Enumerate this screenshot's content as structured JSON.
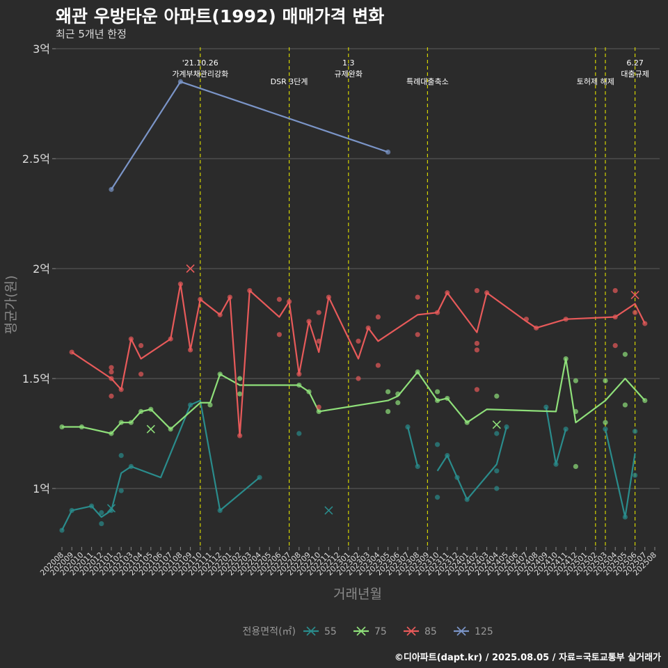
{
  "chart_data": {
    "type": "line",
    "title": "왜관 우방타운 아파트(1992) 매매가격 변화",
    "subtitle": "최근 5개년 한정",
    "xlabel": "거래년월",
    "ylabel": "평균가(원)",
    "credit": "©디아파트(dapt.kr) / 2025.08.05 / 자료=국토교통부 실거래가",
    "ylim": [
      0.8,
      3.0
    ],
    "y_ticks": [
      {
        "value": 1.0,
        "label": "1억"
      },
      {
        "value": 1.5,
        "label": "1.5억"
      },
      {
        "value": 2.0,
        "label": "2억"
      },
      {
        "value": 2.5,
        "label": "2.5억"
      },
      {
        "value": 3.0,
        "label": "3억"
      }
    ],
    "x_categories": [
      "202008",
      "202009",
      "202010",
      "202011",
      "202012",
      "202101",
      "202102",
      "202103",
      "202104",
      "202105",
      "202106",
      "202107",
      "202108",
      "202109",
      "202110",
      "202111",
      "202112",
      "202201",
      "202202",
      "202203",
      "202204",
      "202205",
      "202206",
      "202207",
      "202208",
      "202209",
      "202210",
      "202211",
      "202212",
      "202301",
      "202302",
      "202303",
      "202304",
      "202305",
      "202306",
      "202307",
      "202308",
      "202309",
      "202310",
      "202311",
      "202312",
      "202401",
      "202402",
      "202403",
      "202404",
      "202405",
      "202406",
      "202407",
      "202408",
      "202409",
      "202410",
      "202411",
      "202412",
      "202501",
      "202502",
      "202503",
      "202504",
      "202505",
      "202506",
      "202507",
      "202508"
    ],
    "legend": {
      "title": "전용면적(㎡)",
      "position": "bottom"
    },
    "events": [
      {
        "x": "202110",
        "lines": [
          "'21.10.26",
          "가계부채관리강화"
        ]
      },
      {
        "x": "202207",
        "lines": [
          "DSR 3단계"
        ]
      },
      {
        "x": "202301",
        "lines": [
          "1.3",
          "규제완화"
        ]
      },
      {
        "x": "202309",
        "lines": [
          "특례대출축소"
        ]
      },
      {
        "x": "202502",
        "lines": [
          "토허제 해제"
        ]
      },
      {
        "x": "202503",
        "lines": []
      },
      {
        "x": "202506",
        "lines": [
          "6.27",
          "대출규제"
        ]
      }
    ],
    "series": [
      {
        "name": "55",
        "color": "#2a8c8c",
        "line": [
          [
            "202008",
            0.81
          ],
          [
            "202009",
            0.9
          ],
          [
            "202011",
            0.92
          ],
          [
            "202012",
            0.87
          ],
          [
            "202101",
            0.9
          ],
          [
            "202102",
            1.07
          ],
          [
            "202103",
            1.1
          ],
          [
            "202106",
            1.05
          ],
          [
            "202109",
            1.38
          ],
          [
            "202110",
            1.4
          ],
          [
            "202112",
            0.9
          ],
          [
            "202204",
            1.05
          ]
        ],
        "line2": [
          [
            "202307",
            1.28
          ],
          [
            "202308",
            1.1
          ]
        ],
        "line3": [
          [
            "202310",
            1.08
          ],
          [
            "202311",
            1.15
          ],
          [
            "202312",
            1.05
          ],
          [
            "202401",
            0.95
          ],
          [
            "202404",
            1.11
          ],
          [
            "202405",
            1.28
          ]
        ],
        "line4": [
          [
            "202409",
            1.37
          ],
          [
            "202410",
            1.11
          ],
          [
            "202411",
            1.27
          ]
        ],
        "line5": [
          [
            "202503",
            1.27
          ],
          [
            "202505",
            0.87
          ],
          [
            "202506",
            1.16
          ]
        ],
        "points": [
          [
            "202008",
            0.81
          ],
          [
            "202009",
            0.9
          ],
          [
            "202011",
            0.92
          ],
          [
            "202012",
            0.89
          ],
          [
            "202012",
            0.84
          ],
          [
            "202101",
            0.9
          ],
          [
            "202102",
            1.15
          ],
          [
            "202102",
            0.99
          ],
          [
            "202103",
            1.1
          ],
          [
            "202109",
            1.38
          ],
          [
            "202112",
            0.9
          ],
          [
            "202204",
            1.05
          ],
          [
            "202208",
            1.25
          ],
          [
            "202307",
            1.28
          ],
          [
            "202308",
            1.1
          ],
          [
            "202310",
            0.96
          ],
          [
            "202310",
            1.2
          ],
          [
            "202311",
            1.15
          ],
          [
            "202312",
            1.05
          ],
          [
            "202401",
            0.95
          ],
          [
            "202404",
            1.25
          ],
          [
            "202404",
            1.08
          ],
          [
            "202404",
            1.0
          ],
          [
            "202405",
            1.28
          ],
          [
            "202409",
            1.37
          ],
          [
            "202410",
            1.11
          ],
          [
            "202411",
            1.27
          ],
          [
            "202503",
            1.27
          ],
          [
            "202505",
            0.87
          ],
          [
            "202506",
            1.26
          ],
          [
            "202506",
            1.06
          ]
        ],
        "crosses": [
          [
            "202101",
            0.91
          ],
          [
            "202211",
            0.9
          ]
        ]
      },
      {
        "name": "75",
        "color": "#8fe07a",
        "line": [
          [
            "202008",
            1.28
          ],
          [
            "202010",
            1.28
          ],
          [
            "202101",
            1.25
          ],
          [
            "202102",
            1.3
          ],
          [
            "202103",
            1.3
          ],
          [
            "202104",
            1.35
          ],
          [
            "202105",
            1.36
          ],
          [
            "202107",
            1.27
          ],
          [
            "202110",
            1.39
          ],
          [
            "202111",
            1.39
          ],
          [
            "202112",
            1.52
          ],
          [
            "202202",
            1.47
          ],
          [
            "202208",
            1.47
          ],
          [
            "202209",
            1.44
          ],
          [
            "202210",
            1.35
          ],
          [
            "202305",
            1.4
          ],
          [
            "202306",
            1.42
          ],
          [
            "202308",
            1.53
          ],
          [
            "202310",
            1.4
          ],
          [
            "202311",
            1.41
          ],
          [
            "202401",
            1.3
          ],
          [
            "202403",
            1.36
          ],
          [
            "202410",
            1.35
          ],
          [
            "202411",
            1.59
          ],
          [
            "202412",
            1.3
          ],
          [
            "202503",
            1.4
          ],
          [
            "202505",
            1.5
          ],
          [
            "202507",
            1.4
          ]
        ],
        "points": [
          [
            "202008",
            1.28
          ],
          [
            "202010",
            1.28
          ],
          [
            "202101",
            1.25
          ],
          [
            "202102",
            1.3
          ],
          [
            "202103",
            1.3
          ],
          [
            "202104",
            1.35
          ],
          [
            "202105",
            1.36
          ],
          [
            "202107",
            1.27
          ],
          [
            "202111",
            1.38
          ],
          [
            "202112",
            1.52
          ],
          [
            "202202",
            1.5
          ],
          [
            "202202",
            1.43
          ],
          [
            "202208",
            1.47
          ],
          [
            "202209",
            1.44
          ],
          [
            "202210",
            1.35
          ],
          [
            "202305",
            1.44
          ],
          [
            "202305",
            1.35
          ],
          [
            "202306",
            1.43
          ],
          [
            "202306",
            1.39
          ],
          [
            "202308",
            1.53
          ],
          [
            "202310",
            1.44
          ],
          [
            "202310",
            1.4
          ],
          [
            "202311",
            1.41
          ],
          [
            "202401",
            1.3
          ],
          [
            "202404",
            1.42
          ],
          [
            "202411",
            1.59
          ],
          [
            "202412",
            1.49
          ],
          [
            "202412",
            1.35
          ],
          [
            "202412",
            1.1
          ],
          [
            "202503",
            1.49
          ],
          [
            "202503",
            1.3
          ],
          [
            "202505",
            1.61
          ],
          [
            "202505",
            1.38
          ],
          [
            "202507",
            1.4
          ]
        ],
        "crosses": [
          [
            "202105",
            1.27
          ],
          [
            "202404",
            1.29
          ]
        ]
      },
      {
        "name": "85",
        "color": "#e85a5a",
        "line": [
          [
            "202009",
            1.62
          ],
          [
            "202101",
            1.5
          ],
          [
            "202102",
            1.45
          ],
          [
            "202103",
            1.68
          ],
          [
            "202104",
            1.59
          ],
          [
            "202107",
            1.68
          ],
          [
            "202108",
            1.93
          ],
          [
            "202109",
            1.63
          ],
          [
            "202110",
            1.86
          ],
          [
            "202112",
            1.79
          ],
          [
            "202201",
            1.87
          ],
          [
            "202202",
            1.24
          ],
          [
            "202203",
            1.9
          ],
          [
            "202206",
            1.78
          ],
          [
            "202207",
            1.85
          ],
          [
            "202208",
            1.52
          ],
          [
            "202209",
            1.76
          ],
          [
            "202210",
            1.62
          ],
          [
            "202211",
            1.87
          ],
          [
            "202302",
            1.59
          ],
          [
            "202303",
            1.73
          ],
          [
            "202304",
            1.67
          ],
          [
            "202308",
            1.79
          ],
          [
            "202310",
            1.8
          ],
          [
            "202311",
            1.89
          ],
          [
            "202402",
            1.71
          ],
          [
            "202403",
            1.89
          ],
          [
            "202407",
            1.76
          ],
          [
            "202408",
            1.73
          ],
          [
            "202411",
            1.77
          ],
          [
            "202504",
            1.78
          ],
          [
            "202506",
            1.84
          ],
          [
            "202507",
            1.75
          ]
        ],
        "points": [
          [
            "202009",
            1.62
          ],
          [
            "202101",
            1.55
          ],
          [
            "202101",
            1.53
          ],
          [
            "202101",
            1.5
          ],
          [
            "202101",
            1.42
          ],
          [
            "202102",
            1.45
          ],
          [
            "202103",
            1.68
          ],
          [
            "202104",
            1.65
          ],
          [
            "202104",
            1.52
          ],
          [
            "202107",
            1.68
          ],
          [
            "202108",
            1.93
          ],
          [
            "202109",
            1.63
          ],
          [
            "202110",
            1.86
          ],
          [
            "202112",
            1.79
          ],
          [
            "202201",
            1.87
          ],
          [
            "202202",
            1.24
          ],
          [
            "202203",
            1.9
          ],
          [
            "202206",
            1.86
          ],
          [
            "202206",
            1.7
          ],
          [
            "202207",
            1.85
          ],
          [
            "202208",
            1.52
          ],
          [
            "202209",
            1.76
          ],
          [
            "202210",
            1.8
          ],
          [
            "202210",
            1.67
          ],
          [
            "202210",
            1.37
          ],
          [
            "202211",
            1.87
          ],
          [
            "202302",
            1.67
          ],
          [
            "202302",
            1.5
          ],
          [
            "202303",
            1.73
          ],
          [
            "202304",
            1.78
          ],
          [
            "202304",
            1.56
          ],
          [
            "202308",
            1.87
          ],
          [
            "202308",
            1.7
          ],
          [
            "202310",
            1.8
          ],
          [
            "202311",
            1.89
          ],
          [
            "202402",
            1.9
          ],
          [
            "202402",
            1.66
          ],
          [
            "202402",
            1.63
          ],
          [
            "202402",
            1.45
          ],
          [
            "202403",
            1.89
          ],
          [
            "202407",
            1.77
          ],
          [
            "202408",
            1.73
          ],
          [
            "202411",
            1.77
          ],
          [
            "202504",
            1.9
          ],
          [
            "202504",
            1.78
          ],
          [
            "202504",
            1.65
          ],
          [
            "202506",
            1.8
          ],
          [
            "202507",
            1.75
          ]
        ],
        "crosses": [
          [
            "202109",
            2.0
          ],
          [
            "202506",
            1.88
          ]
        ]
      },
      {
        "name": "125",
        "color": "#7b95c8",
        "line": [
          [
            "202101",
            2.36
          ],
          [
            "202108",
            2.85
          ],
          [
            "202305",
            2.53
          ]
        ],
        "points": [
          [
            "202101",
            2.36
          ],
          [
            "202108",
            2.85
          ],
          [
            "202305",
            2.53
          ]
        ],
        "crosses": []
      }
    ]
  }
}
